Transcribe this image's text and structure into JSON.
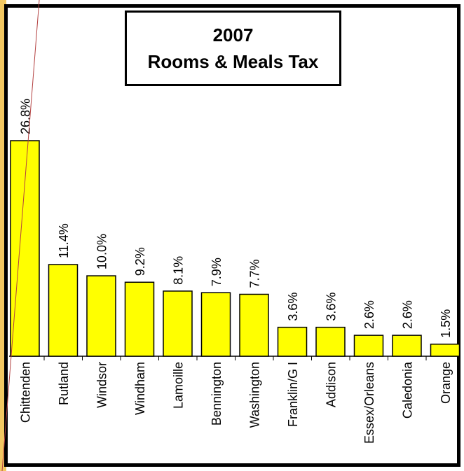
{
  "chart_data": {
    "type": "bar",
    "title": "2007",
    "subtitle": "Rooms & Meals Tax",
    "categories": [
      "Chittenden",
      "Rutland",
      "Windsor",
      "Windham",
      "Lamoille",
      "Bennington",
      "Washington",
      "Franklin/G I",
      "Addison",
      "Essex/Orleans",
      "Caledonia",
      "Orange"
    ],
    "values": [
      26.8,
      11.4,
      10.0,
      9.2,
      8.1,
      7.9,
      7.7,
      3.6,
      3.6,
      2.6,
      2.6,
      1.5
    ],
    "labels": [
      "26.8%",
      "11.4%",
      "10.0%",
      "9.2%",
      "8.1%",
      "7.9%",
      "7.7%",
      "3.6%",
      "3.6%",
      "2.6%",
      "2.6%",
      "1.5%"
    ],
    "unit": "%",
    "xlabel": "",
    "ylabel": "",
    "legend": "none",
    "grid": false,
    "colors": {
      "bar_fill": "#ffff00",
      "bar_stroke": "#000000",
      "accent_strip": "#f3c862"
    }
  }
}
